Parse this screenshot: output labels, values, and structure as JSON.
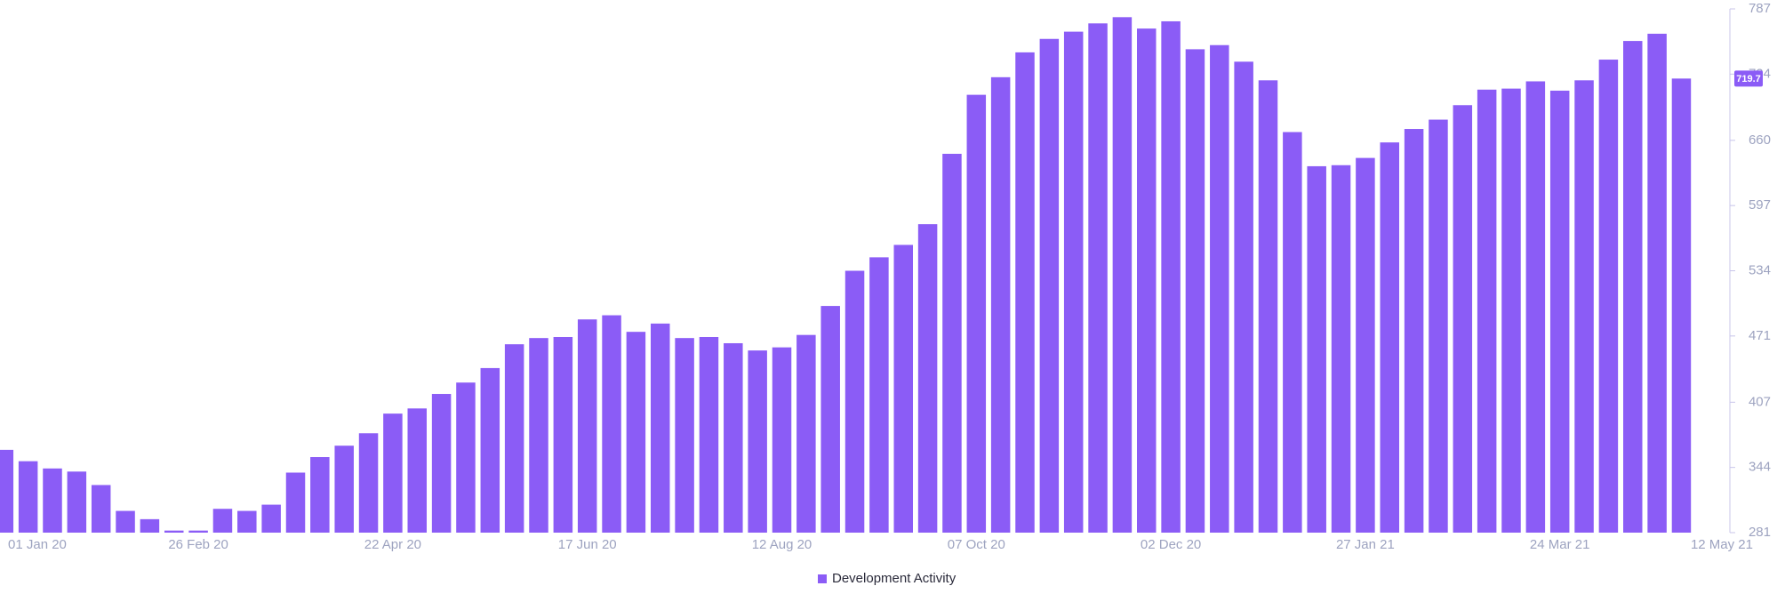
{
  "chart_data": {
    "type": "bar",
    "categories": [
      "01 Jan 20",
      null,
      null,
      null,
      null,
      null,
      null,
      null,
      "26 Feb 20",
      null,
      null,
      null,
      null,
      null,
      null,
      null,
      "22 Apr 20",
      null,
      null,
      null,
      null,
      null,
      null,
      null,
      "17 Jun 20",
      null,
      null,
      null,
      null,
      null,
      null,
      null,
      "12 Aug 20",
      null,
      null,
      null,
      null,
      null,
      null,
      null,
      "07 Oct 20",
      null,
      null,
      null,
      null,
      null,
      null,
      null,
      "02 Dec 20",
      null,
      null,
      null,
      null,
      null,
      null,
      null,
      "27 Jan 21",
      null,
      null,
      null,
      null,
      null,
      null,
      null,
      "24 Mar 21",
      null,
      null,
      null,
      null,
      null,
      null,
      "12 May 21"
    ],
    "series": [
      {
        "name": "Development Activity",
        "color": "#8b5cf6",
        "values": [
          361,
          350,
          343,
          340,
          327,
          302,
          294,
          283,
          283,
          304,
          302,
          308,
          339,
          354,
          365,
          377,
          396,
          401,
          415,
          426,
          440,
          463,
          469,
          470,
          487,
          491,
          475,
          483,
          469,
          470,
          464,
          457,
          460,
          472,
          500,
          534,
          547,
          559,
          579,
          647,
          704,
          721,
          745,
          758,
          765,
          773,
          779,
          768,
          775,
          748,
          752,
          736,
          718,
          668,
          635,
          636,
          643,
          658,
          671,
          680,
          694,
          709,
          710,
          717,
          708,
          718,
          738,
          756,
          763,
          719.7,
          null,
          null
        ]
      }
    ],
    "ylim": [
      281,
      787
    ],
    "yticks": [
      281,
      344,
      407,
      471,
      534,
      597,
      660,
      724,
      787
    ],
    "y_axis_side": "right",
    "grid": false,
    "legend": "bottom"
  }
}
